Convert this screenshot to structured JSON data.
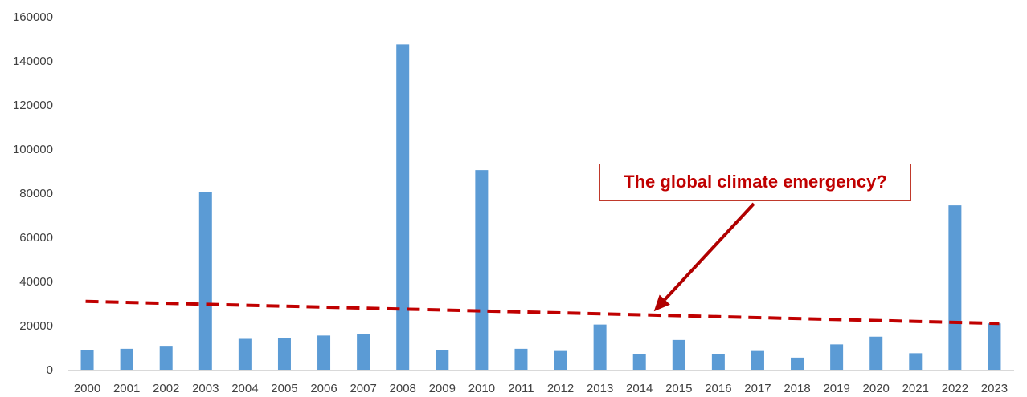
{
  "chart_data": {
    "type": "bar",
    "title": "",
    "xlabel": "",
    "ylabel": "",
    "ylim": [
      0,
      160000
    ],
    "yticks": [
      0,
      20000,
      40000,
      60000,
      80000,
      100000,
      120000,
      140000,
      160000
    ],
    "grid": false,
    "legend": "none",
    "categories": [
      "2000",
      "2001",
      "2002",
      "2003",
      "2004",
      "2005",
      "2006",
      "2007",
      "2008",
      "2009",
      "2010",
      "2011",
      "2012",
      "2013",
      "2014",
      "2015",
      "2016",
      "2017",
      "2018",
      "2019",
      "2020",
      "2021",
      "2022",
      "2023"
    ],
    "values": [
      9000,
      9500,
      10500,
      80500,
      14000,
      14500,
      15500,
      16000,
      147500,
      9000,
      90500,
      9500,
      8500,
      20500,
      7000,
      13500,
      7000,
      8500,
      5500,
      11500,
      15000,
      7500,
      74500,
      21000
    ],
    "bar_color": "#5b9bd5",
    "trendline": {
      "style": "dashed",
      "color": "#c00000",
      "start": {
        "x": "2000",
        "y": 31000
      },
      "end": {
        "x": "2023",
        "y": 21000
      }
    },
    "annotation": {
      "text": "The global climate emergency?",
      "color": "#c00000",
      "arrow_to": {
        "x": "2014",
        "y": 25000
      }
    }
  }
}
